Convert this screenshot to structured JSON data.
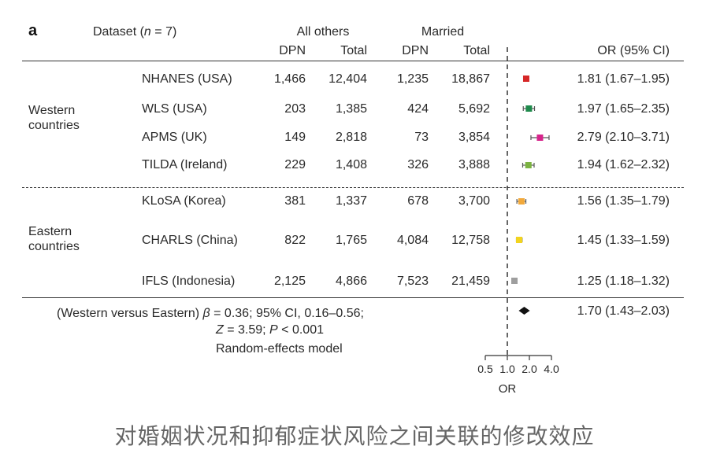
{
  "panel_label": "a",
  "header": {
    "dataset_prefix": "Dataset (",
    "n_symbol": "n",
    "dataset_suffix": " = 7)",
    "all_others": "All others",
    "married": "Married",
    "dpn": "DPN",
    "total": "Total",
    "or_ci": "OR (95% CI)"
  },
  "groups": {
    "western": [
      "Western",
      "countries"
    ],
    "eastern": [
      "Eastern",
      "countries"
    ]
  },
  "rows": [
    {
      "dataset": "NHANES (USA)",
      "ao_dpn": "1,466",
      "ao_total": "12,404",
      "m_dpn": "1,235",
      "m_total": "18,867",
      "or_text": "1.81 (1.67–1.95)"
    },
    {
      "dataset": "WLS (USA)",
      "ao_dpn": "203",
      "ao_total": "1,385",
      "m_dpn": "424",
      "m_total": "5,692",
      "or_text": "1.97 (1.65–2.35)"
    },
    {
      "dataset": "APMS (UK)",
      "ao_dpn": "149",
      "ao_total": "2,818",
      "m_dpn": "73",
      "m_total": "3,854",
      "or_text": "2.79 (2.10–3.71)"
    },
    {
      "dataset": "TILDA (Ireland)",
      "ao_dpn": "229",
      "ao_total": "1,408",
      "m_dpn": "326",
      "m_total": "3,888",
      "or_text": "1.94 (1.62–2.32)"
    },
    {
      "dataset": "KLoSA (Korea)",
      "ao_dpn": "381",
      "ao_total": "1,337",
      "m_dpn": "678",
      "m_total": "3,700",
      "or_text": "1.56 (1.35–1.79)"
    },
    {
      "dataset": "CHARLS (China)",
      "ao_dpn": "822",
      "ao_total": "1,765",
      "m_dpn": "4,084",
      "m_total": "12,758",
      "or_text": "1.45 (1.33–1.59)"
    },
    {
      "dataset": "IFLS (Indonesia)",
      "ao_dpn": "2,125",
      "ao_total": "4,866",
      "m_dpn": "7,523",
      "m_total": "21,459",
      "or_text": "1.25 (1.18–1.32)"
    }
  ],
  "summary": {
    "line1_prefix": "(Western versus Eastern) ",
    "beta_symbol": "β",
    "line1_suffix": " = 0.36; 95% CI, 0.16–0.56;",
    "z_symbol": "Z",
    "line2_mid": " = 3.59; ",
    "p_symbol": "P",
    "line2_suffix": " < 0.001",
    "model": "Random-effects model",
    "or_text": "1.70 (1.43–2.03)"
  },
  "caption": "对婚姻状况和抑郁症状风险之间关联的修改效应",
  "chart_data": {
    "type": "forest",
    "xlabel": "OR",
    "xscale": "log",
    "reference_line": 1.0,
    "xticks": [
      0.5,
      1.0,
      2.0,
      4.0
    ],
    "xtick_labels": [
      "0.5",
      "1.0",
      "2.0",
      "4.0"
    ],
    "xlim": [
      0.5,
      4.0
    ],
    "points": [
      {
        "label": "NHANES (USA)",
        "or": 1.81,
        "lo": 1.67,
        "hi": 1.95,
        "color": "#d62728"
      },
      {
        "label": "WLS (USA)",
        "or": 1.97,
        "lo": 1.65,
        "hi": 2.35,
        "color": "#1f8a4c"
      },
      {
        "label": "APMS (UK)",
        "or": 2.79,
        "lo": 2.1,
        "hi": 3.71,
        "color": "#d6248b"
      },
      {
        "label": "TILDA (Ireland)",
        "or": 1.94,
        "lo": 1.62,
        "hi": 2.32,
        "color": "#7cb342"
      },
      {
        "label": "KLoSA (Korea)",
        "or": 1.56,
        "lo": 1.35,
        "hi": 1.79,
        "color": "#f2a93b"
      },
      {
        "label": "CHARLS (China)",
        "or": 1.45,
        "lo": 1.33,
        "hi": 1.59,
        "color": "#f2d41f"
      },
      {
        "label": "IFLS (Indonesia)",
        "or": 1.25,
        "lo": 1.18,
        "hi": 1.32,
        "color": "#9e9e9e"
      }
    ],
    "pooled": {
      "label": "Western versus Eastern",
      "or": 1.7,
      "lo": 1.43,
      "hi": 2.03,
      "color": "#111111"
    }
  }
}
